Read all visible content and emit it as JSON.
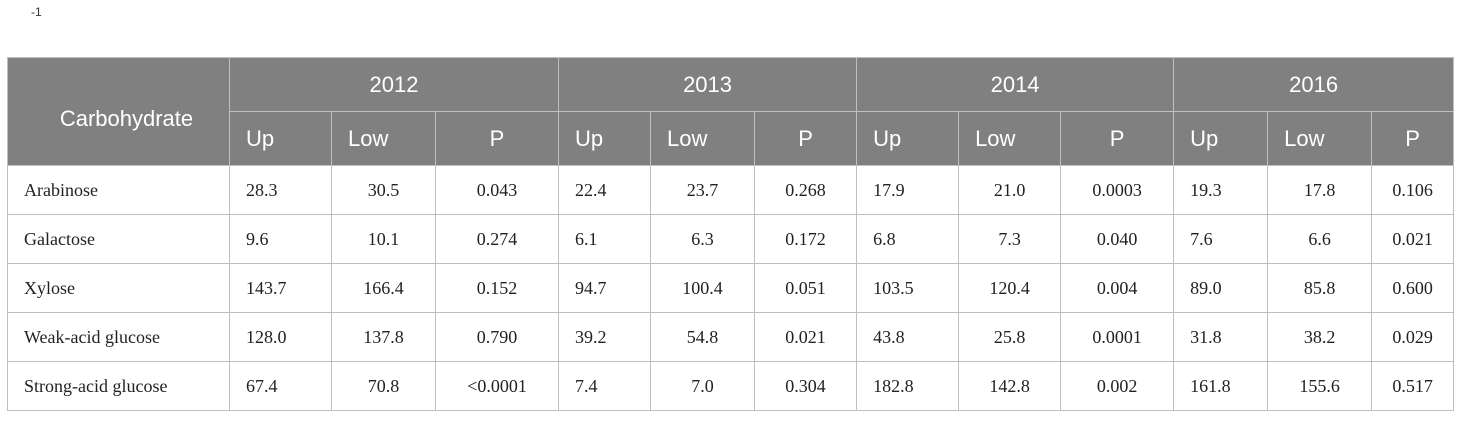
{
  "caption": "-1",
  "table": {
    "label_header": "Carbohydrate",
    "years": [
      "2012",
      "2013",
      "2014",
      "2016"
    ],
    "sub_headers": {
      "up": "Up",
      "low": "Low",
      "p": "P"
    },
    "rows": [
      {
        "name": "Arabinose",
        "values": [
          [
            "28.3",
            "30.5",
            "0.043"
          ],
          [
            "22.4",
            "23.7",
            "0.268"
          ],
          [
            "17.9",
            "21.0",
            "0.0003"
          ],
          [
            "19.3",
            "17.8",
            "0.106"
          ]
        ]
      },
      {
        "name": "Galactose",
        "values": [
          [
            "9.6",
            "10.1",
            "0.274"
          ],
          [
            "6.1",
            "6.3",
            "0.172"
          ],
          [
            "6.8",
            "7.3",
            "0.040"
          ],
          [
            "7.6",
            "6.6",
            "0.021"
          ]
        ]
      },
      {
        "name": "Xylose",
        "values": [
          [
            "143.7",
            "166.4",
            "0.152"
          ],
          [
            "94.7",
            "100.4",
            "0.051"
          ],
          [
            "103.5",
            "120.4",
            "0.004"
          ],
          [
            "89.0",
            "85.8",
            "0.600"
          ]
        ]
      },
      {
        "name": "Weak-acid glucose",
        "values": [
          [
            "128.0",
            "137.8",
            "0.790"
          ],
          [
            "39.2",
            "54.8",
            "0.021"
          ],
          [
            "43.8",
            "25.8",
            "0.0001"
          ],
          [
            "31.8",
            "38.2",
            "0.029"
          ]
        ]
      },
      {
        "name": "Strong-acid glucose",
        "values": [
          [
            "67.4",
            "70.8",
            "<0.0001"
          ],
          [
            "7.4",
            "7.0",
            "0.304"
          ],
          [
            "182.8",
            "142.8",
            "0.002"
          ],
          [
            "161.8",
            "155.6",
            "0.517"
          ]
        ]
      }
    ]
  }
}
